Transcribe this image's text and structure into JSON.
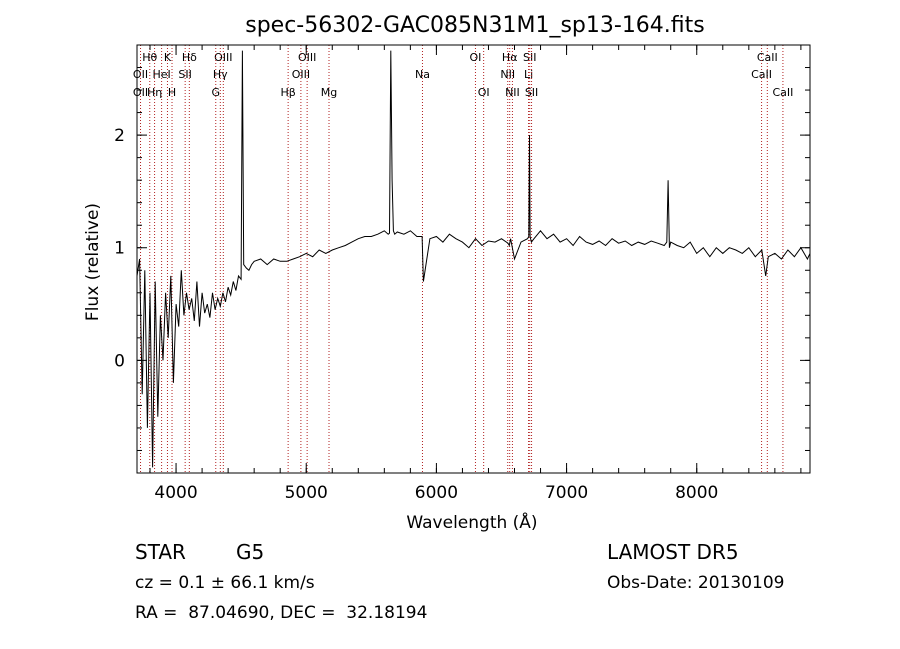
{
  "chart_data": {
    "type": "line",
    "title": "spec-56302-GAC085N31M1_sp13-164.fits",
    "xlabel": "Wavelength (Å)",
    "ylabel": "Flux (relative)",
    "xlim": [
      3700,
      8870
    ],
    "ylim": [
      -1.0,
      2.8
    ],
    "xticks": [
      4000,
      5000,
      6000,
      7000,
      8000
    ],
    "yticks": [
      0,
      1,
      2
    ],
    "grid": false,
    "series": [
      {
        "x": [
          3700,
          3720,
          3740,
          3760,
          3780,
          3800,
          3820,
          3840,
          3860,
          3880,
          3900,
          3920,
          3940,
          3960,
          3980,
          4000,
          4020,
          4040,
          4060,
          4080,
          4100,
          4120,
          4140,
          4160,
          4180,
          4200,
          4220,
          4240,
          4260,
          4280,
          4300,
          4320,
          4340,
          4360,
          4380,
          4400,
          4420,
          4440,
          4460,
          4480,
          4500,
          4510,
          4520,
          4540,
          4560,
          4580,
          4600,
          4650,
          4700,
          4750,
          4800,
          4850,
          4900,
          4950,
          5000,
          5050,
          5100,
          5150,
          5200,
          5250,
          5300,
          5350,
          5400,
          5450,
          5500,
          5550,
          5600,
          5630,
          5640,
          5650,
          5660,
          5670,
          5680,
          5700,
          5750,
          5800,
          5850,
          5890,
          5900,
          5950,
          6000,
          6050,
          6100,
          6150,
          6200,
          6250,
          6300,
          6350,
          6400,
          6450,
          6500,
          6550,
          6560,
          6570,
          6600,
          6650,
          6700,
          6710,
          6715,
          6720,
          6730,
          6750,
          6800,
          6850,
          6900,
          6950,
          7000,
          7050,
          7100,
          7150,
          7200,
          7250,
          7300,
          7350,
          7400,
          7450,
          7500,
          7550,
          7600,
          7650,
          7700,
          7750,
          7770,
          7780,
          7790,
          7800,
          7850,
          7900,
          7950,
          8000,
          8050,
          8100,
          8150,
          8200,
          8250,
          8300,
          8350,
          8400,
          8450,
          8500,
          8530,
          8550,
          8600,
          8650,
          8700,
          8750,
          8800,
          8850,
          8870
        ],
        "y": [
          0.75,
          0.9,
          -0.3,
          0.8,
          -0.6,
          0.6,
          -0.95,
          0.7,
          -0.5,
          0.4,
          0.0,
          0.6,
          0.2,
          0.75,
          -0.2,
          0.5,
          0.3,
          0.8,
          0.4,
          0.6,
          0.45,
          0.55,
          0.35,
          0.7,
          0.3,
          0.6,
          0.42,
          0.5,
          0.38,
          0.6,
          0.45,
          0.55,
          0.48,
          0.6,
          0.52,
          0.65,
          0.58,
          0.7,
          0.62,
          0.75,
          0.72,
          2.75,
          0.85,
          0.82,
          0.8,
          0.85,
          0.88,
          0.9,
          0.85,
          0.9,
          0.88,
          0.88,
          0.9,
          0.92,
          0.95,
          0.92,
          0.98,
          0.95,
          0.98,
          1.0,
          1.02,
          1.05,
          1.08,
          1.1,
          1.1,
          1.12,
          1.15,
          1.12,
          1.13,
          2.75,
          1.6,
          1.15,
          1.12,
          1.14,
          1.12,
          1.15,
          1.1,
          1.1,
          0.7,
          1.08,
          1.1,
          1.05,
          1.12,
          1.08,
          1.05,
          1.0,
          1.08,
          1.02,
          1.06,
          1.05,
          1.08,
          1.04,
          1.02,
          1.08,
          0.9,
          1.05,
          1.08,
          1.1,
          2.0,
          1.1,
          1.05,
          1.08,
          1.15,
          1.08,
          1.12,
          1.05,
          1.08,
          1.02,
          1.1,
          1.05,
          1.03,
          1.06,
          1.02,
          1.08,
          1.04,
          1.06,
          1.02,
          1.05,
          1.03,
          1.06,
          1.04,
          1.02,
          1.05,
          1.6,
          1.0,
          1.05,
          1.02,
          1.0,
          1.05,
          0.95,
          1.0,
          0.92,
          1.0,
          0.95,
          1.0,
          0.98,
          0.95,
          1.0,
          0.92,
          0.98,
          0.75,
          0.92,
          0.95,
          0.9,
          0.98,
          0.92,
          1.0,
          0.9,
          0.95
        ]
      }
    ],
    "lines": [
      {
        "label": "Hθ",
        "wave": 3798,
        "row": 1
      },
      {
        "label": "K",
        "wave": 3934,
        "row": 1
      },
      {
        "label": "Hδ",
        "wave": 4102,
        "row": 1
      },
      {
        "label": "OIII",
        "wave": 4363,
        "row": 1
      },
      {
        "label": "OIII",
        "wave": 5007,
        "row": 1
      },
      {
        "label": "Na",
        "wave": 5893,
        "row": 2
      },
      {
        "label": "OI",
        "wave": 6300,
        "row": 1
      },
      {
        "label": "Hα",
        "wave": 6563,
        "row": 1
      },
      {
        "label": "SII",
        "wave": 6717,
        "row": 1
      },
      {
        "label": "CaII",
        "wave": 8542,
        "row": 1
      },
      {
        "label": "OII",
        "wave": 3727,
        "row": 2
      },
      {
        "label": "HeI",
        "wave": 3889,
        "row": 2
      },
      {
        "label": "SII",
        "wave": 4070,
        "row": 2
      },
      {
        "label": "Hγ",
        "wave": 4340,
        "row": 2
      },
      {
        "label": "OIII",
        "wave": 4959,
        "row": 2
      },
      {
        "label": "NII",
        "wave": 6548,
        "row": 2
      },
      {
        "label": "Li",
        "wave": 6708,
        "row": 2
      },
      {
        "label": "CaII",
        "wave": 8498,
        "row": 2
      },
      {
        "label": "OII",
        "wave": 3727,
        "row": 3
      },
      {
        "label": "Hη",
        "wave": 3835,
        "row": 3
      },
      {
        "label": "H",
        "wave": 3969,
        "row": 3
      },
      {
        "label": "G",
        "wave": 4305,
        "row": 3
      },
      {
        "label": "Hβ",
        "wave": 4861,
        "row": 3
      },
      {
        "label": "Mg",
        "wave": 5175,
        "row": 3
      },
      {
        "label": "OI",
        "wave": 6363,
        "row": 3
      },
      {
        "label": "NII",
        "wave": 6584,
        "row": 3
      },
      {
        "label": "SII",
        "wave": 6731,
        "row": 3
      },
      {
        "label": "CaII",
        "wave": 8662,
        "row": 3
      }
    ]
  },
  "info": {
    "class": "STAR",
    "subclass": "G5",
    "survey": "LAMOST DR5",
    "redshift": "cz = 0.1 ± 66.1 km/s",
    "obs_date": "Obs-Date: 20130109",
    "coords": "RA =  87.04690, DEC =  32.18194"
  }
}
